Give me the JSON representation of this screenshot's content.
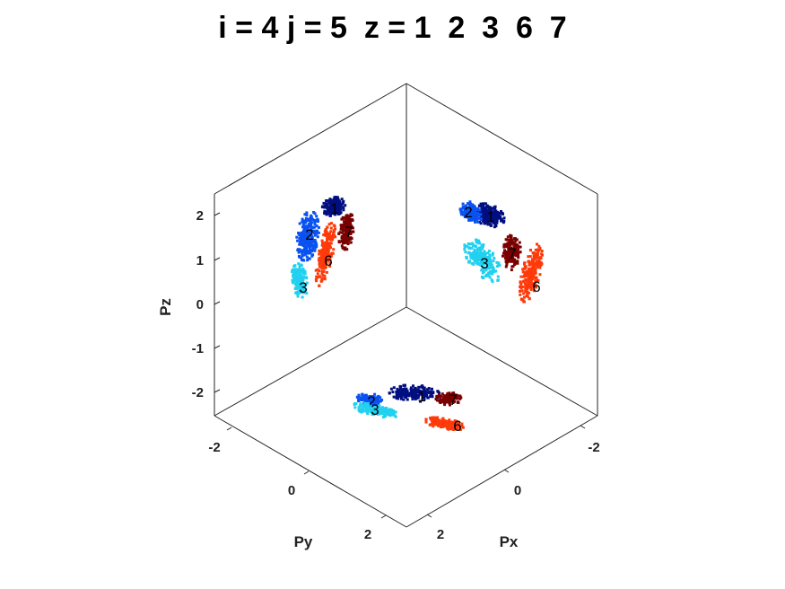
{
  "chart_data": {
    "type": "scatter",
    "title": "i = 4 j = 5  z = 1  2  3  6  7",
    "axes": {
      "x": {
        "label": "Px",
        "ticks": [
          "-2",
          "0",
          "2"
        ]
      },
      "y": {
        "label": "Py",
        "ticks": [
          "-2",
          "0",
          "2"
        ]
      },
      "z": {
        "label": "Pz",
        "ticks": [
          "2",
          "1",
          "0",
          "-1",
          "-2"
        ]
      }
    },
    "grid": false,
    "projections": [
      "wall-left",
      "wall-right",
      "floor"
    ],
    "clusters": [
      {
        "label": "1",
        "color": "#000e80"
      },
      {
        "label": "2",
        "color": "#0a52f0"
      },
      {
        "label": "3",
        "color": "#22d0f0"
      },
      {
        "label": "6",
        "color": "#ff3a0a"
      },
      {
        "label": "7",
        "color": "#7a0000"
      }
    ]
  }
}
